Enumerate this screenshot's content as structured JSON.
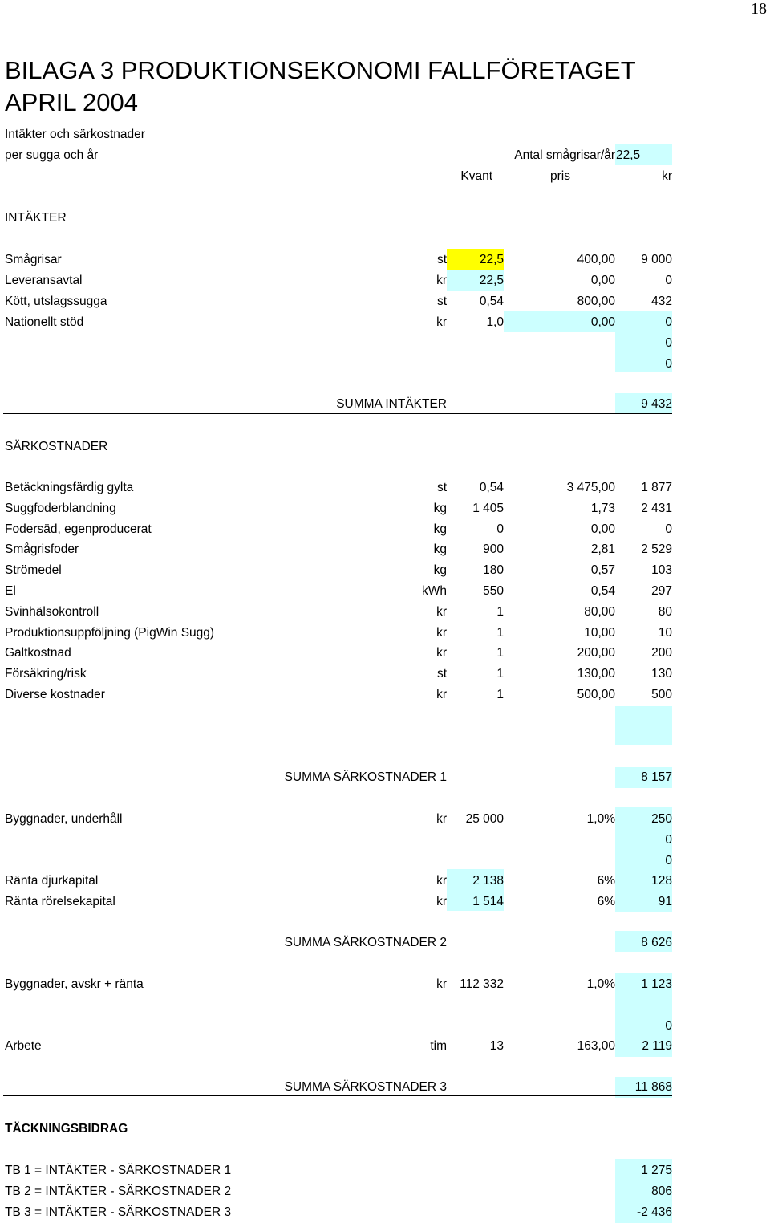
{
  "page_number": "18",
  "title_line1": "BILAGA 3   PRODUKTIONSEKONOMI FALLFÖRETAGET",
  "title_line2": "APRIL 2004",
  "subtitle1": "Intäkter och särkostnader",
  "subtitle2": "per sugga och år",
  "antal_label": "Antal smågrisar/år",
  "antal_value": "22,5",
  "columns": {
    "kvant": "Kvant",
    "pris": "pris",
    "kr": "kr"
  },
  "intakter_heading": "INTÄKTER",
  "intakter_rows": [
    {
      "label": "Smågrisar",
      "unit": "st",
      "qty": "22,5",
      "price": "400,00",
      "amount": "9 000"
    },
    {
      "label": "Leveransavtal",
      "unit": "kr",
      "qty": "22,5",
      "price": "0,00",
      "amount": "0"
    },
    {
      "label": "Kött, utslagssugga",
      "unit": "st",
      "qty": "0,54",
      "price": "800,00",
      "amount": "432"
    },
    {
      "label": "Nationellt stöd",
      "unit": "kr",
      "qty": "1,0",
      "price": "0,00",
      "amount": "0"
    },
    {
      "label": "",
      "unit": "",
      "qty": "",
      "price": "",
      "amount": "0"
    },
    {
      "label": "",
      "unit": "",
      "qty": "",
      "price": "",
      "amount": "0"
    }
  ],
  "summa_intakter": {
    "label": "SUMMA INTÄKTER",
    "amount": "9 432"
  },
  "sarkostnader_heading": "SÄRKOSTNADER",
  "sarkostnader_rows": [
    {
      "label": "Betäckningsfärdig gylta",
      "unit": "st",
      "qty": "0,54",
      "price": "3 475,00",
      "amount": "1 877"
    },
    {
      "label": "Suggfoderblandning",
      "unit": "kg",
      "qty": "1 405",
      "price": "1,73",
      "amount": "2 431"
    },
    {
      "label": "Fodersäd, egenproducerat",
      "unit": "kg",
      "qty": "0",
      "price": "0,00",
      "amount": "0"
    },
    {
      "label": "Smågrisfoder",
      "unit": "kg",
      "qty": "900",
      "price": "2,81",
      "amount": "2 529"
    },
    {
      "label": "Strömedel",
      "unit": "kg",
      "qty": "180",
      "price": "0,57",
      "amount": "103"
    },
    {
      "label": "El",
      "unit": "kWh",
      "qty": "550",
      "price": "0,54",
      "amount": "297"
    },
    {
      "label": "Svinhälsokontroll",
      "unit": "kr",
      "qty": "1",
      "price": "80,00",
      "amount": "80"
    },
    {
      "label": "Produktionsuppföljning (PigWin Sugg)",
      "unit": "kr",
      "qty": "1",
      "price": "10,00",
      "amount": "10"
    },
    {
      "label": "Galtkostnad",
      "unit": "kr",
      "qty": "1",
      "price": "200,00",
      "amount": "200"
    },
    {
      "label": "Försäkring/risk",
      "unit": "st",
      "qty": "1",
      "price": "130,00",
      "amount": "130"
    },
    {
      "label": "Diverse kostnader",
      "unit": "kr",
      "qty": "1",
      "price": "500,00",
      "amount": "500"
    }
  ],
  "summa_sark1": {
    "label": "SUMMA SÄRKOSTNADER 1",
    "amount": "8 157"
  },
  "group2_rows": [
    {
      "label": "Byggnader, underhåll",
      "unit": "kr",
      "qty": "25 000",
      "price": "1,0%",
      "amount": "250"
    },
    {
      "label": "",
      "unit": "",
      "qty": "",
      "price": "",
      "amount": "0"
    },
    {
      "label": "",
      "unit": "",
      "qty": "",
      "price": "",
      "amount": "0"
    },
    {
      "label": "Ränta djurkapital",
      "unit": "kr",
      "qty": "2 138",
      "price": "6%",
      "amount": "128"
    },
    {
      "label": "Ränta rörelsekapital",
      "unit": "kr",
      "qty": "1 514",
      "price": "6%",
      "amount": "91"
    }
  ],
  "summa_sark2": {
    "label": "SUMMA SÄRKOSTNADER 2",
    "amount": "8 626"
  },
  "group3_rows": [
    {
      "label": "Byggnader, avskr + ränta",
      "unit": "kr",
      "qty": "112 332",
      "price": "1,0%",
      "amount": "1 123"
    },
    {
      "label": "",
      "unit": "",
      "qty": "",
      "price": "",
      "amount": ""
    },
    {
      "label": "",
      "unit": "",
      "qty": "",
      "price": "",
      "amount": "0"
    },
    {
      "label": "Arbete",
      "unit": "tim",
      "qty": "13",
      "price": "163,00",
      "amount": "2 119"
    }
  ],
  "summa_sark3": {
    "label": "SUMMA SÄRKOSTNADER 3",
    "amount": "11 868"
  },
  "tb_heading": "TÄCKNINGSBIDRAG",
  "tb_rows": [
    {
      "label": "TB 1 = INTÄKTER - SÄRKOSTNADER 1",
      "amount": "1 275"
    },
    {
      "label": "TB 2 = INTÄKTER - SÄRKOSTNADER 2",
      "amount": "806"
    },
    {
      "label": "TB 3 = INTÄKTER - SÄRKOSTNADER 3",
      "amount": "-2 436"
    }
  ]
}
